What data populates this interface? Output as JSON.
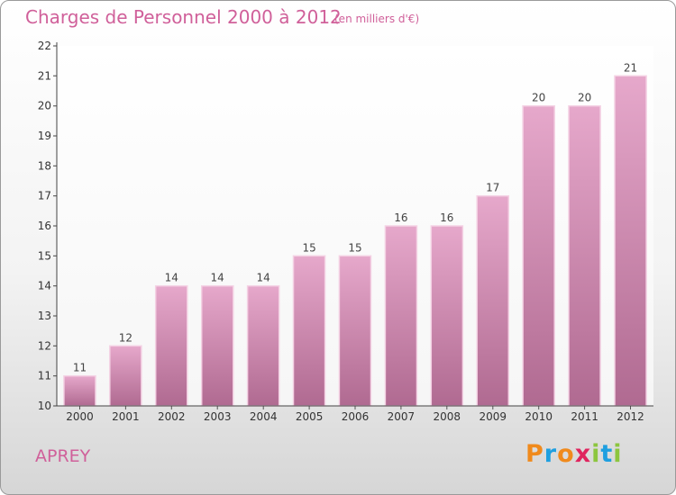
{
  "header": {
    "title": "Charges de Personnel 2000 à 2012",
    "subtitle": "(en milliers d'€)"
  },
  "footer": {
    "location": "APREY",
    "logo_letters": [
      "P",
      "r",
      "o",
      "x",
      "i",
      "t",
      "i"
    ],
    "logo_colors": [
      "#f08a1c",
      "#1e9fe0",
      "#f08a1c",
      "#e0245e",
      "#8cc63f",
      "#1e9fe0",
      "#8cc63f"
    ]
  },
  "chart_data": {
    "type": "bar",
    "categories": [
      "2000",
      "2001",
      "2002",
      "2003",
      "2004",
      "2005",
      "2006",
      "2007",
      "2008",
      "2009",
      "2010",
      "2011",
      "2012"
    ],
    "values": [
      11,
      12,
      14,
      14,
      14,
      15,
      15,
      16,
      16,
      17,
      20,
      20,
      21
    ],
    "data_labels": [
      "11",
      "12",
      "14",
      "14",
      "14",
      "15",
      "15",
      "16",
      "16",
      "17",
      "20",
      "20",
      "21"
    ],
    "title": "Charges de Personnel 2000 à 2012",
    "xlabel": "",
    "ylabel": "",
    "ylim": [
      10,
      22
    ],
    "yticks": [
      10,
      11,
      12,
      13,
      14,
      15,
      16,
      17,
      18,
      19,
      20,
      21,
      22
    ],
    "grid": false,
    "bar_color_top": "#e6a8cb",
    "bar_color_bottom": "#b06a91"
  }
}
